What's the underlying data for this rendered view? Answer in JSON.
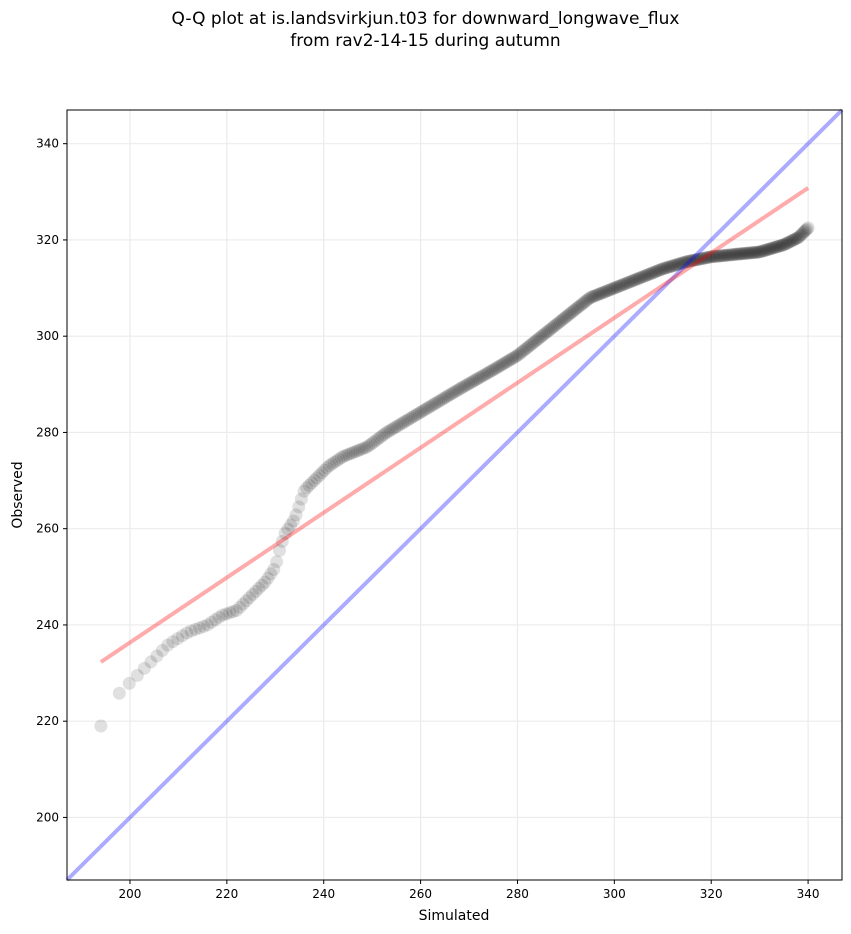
{
  "chart_data": {
    "type": "scatter",
    "title": "Q-Q plot at is.landsvirkjun.t03 for downward_longwave_flux",
    "subtitle": "from rav2-14-15 during autumn",
    "xlabel": "Simulated",
    "ylabel": "Observed",
    "xlim": [
      187,
      347
    ],
    "ylim": [
      187,
      347
    ],
    "xticks": [
      200,
      220,
      240,
      260,
      280,
      300,
      320,
      340
    ],
    "yticks": [
      200,
      220,
      240,
      260,
      280,
      300,
      320,
      340
    ],
    "grid": true,
    "quantile_curve": {
      "simulated": [
        194,
        195,
        197,
        199,
        202,
        205,
        208,
        212,
        216,
        219,
        222,
        225,
        228,
        230,
        231,
        232,
        234,
        235,
        236,
        238,
        241,
        244,
        249,
        253,
        258,
        263,
        268,
        275,
        280,
        285,
        290,
        295,
        300,
        305,
        310,
        315,
        320,
        330,
        335,
        338,
        340
      ],
      "observed": [
        219,
        223,
        225,
        227,
        230,
        233,
        236,
        238.5,
        240,
        242,
        243,
        246,
        249,
        252,
        256,
        259,
        262,
        265,
        268,
        270,
        273,
        275,
        277,
        280,
        283,
        286,
        289,
        293,
        296,
        300,
        304,
        308,
        310,
        312,
        314,
        315.5,
        316.5,
        317.5,
        319,
        320.5,
        322.5
      ]
    },
    "fit_line": {
      "x": [
        194,
        340
      ],
      "y": [
        232.3,
        330.8
      ],
      "color": "#ff0000"
    },
    "identity_line": {
      "x": [
        187,
        347
      ],
      "y": [
        187,
        347
      ],
      "color": "#0000ff"
    },
    "point_color": "#000000"
  }
}
